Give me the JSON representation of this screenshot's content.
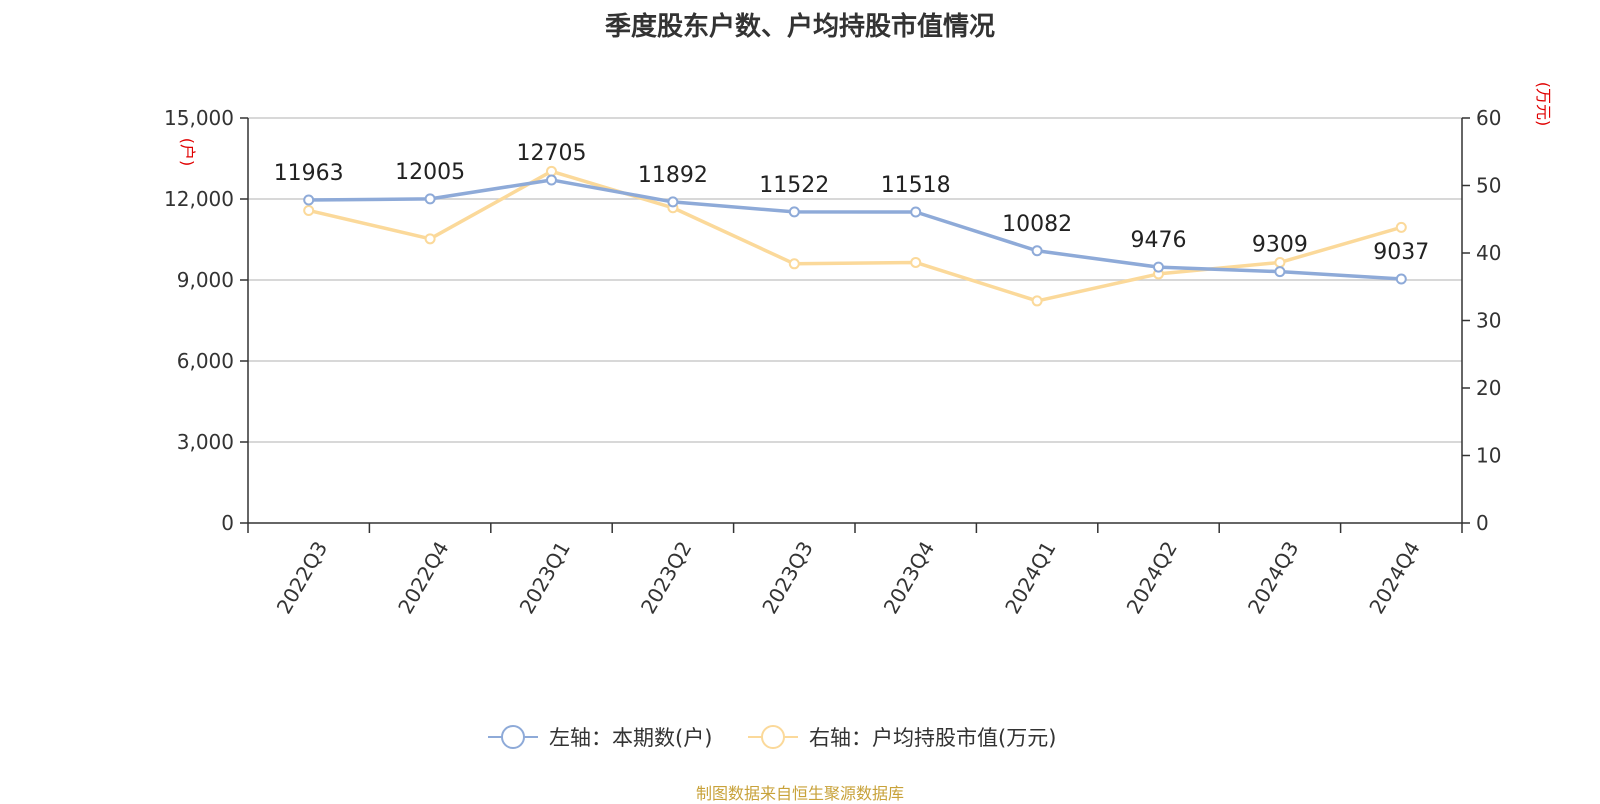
{
  "chart_data": {
    "type": "line",
    "title": "季度股东户数、户均持股市值情况",
    "categories": [
      "2022Q3",
      "2022Q4",
      "2023Q1",
      "2023Q2",
      "2023Q3",
      "2023Q4",
      "2024Q1",
      "2024Q2",
      "2024Q3",
      "2024Q4"
    ],
    "series": [
      {
        "name": "左轴：本期数(户)",
        "axis": "left",
        "color": "#8eaad8",
        "values": [
          11963,
          12005,
          12705,
          11892,
          11522,
          11518,
          10082,
          9476,
          9309,
          9037
        ],
        "labels": [
          "11963",
          "12005",
          "12705",
          "11892",
          "11522",
          "11518",
          "10082",
          "9476",
          "9309",
          "9037"
        ]
      },
      {
        "name": "右轴：户均持股市值(万元)",
        "axis": "right",
        "color": "#fbd99a",
        "values": [
          46.3,
          42.1,
          52.1,
          46.7,
          38.4,
          38.6,
          32.9,
          36.9,
          38.6,
          43.8
        ]
      }
    ],
    "left_axis": {
      "unit": "(户)",
      "ylim": [
        0,
        15000
      ],
      "ticks": [
        "0",
        "3,000",
        "6,000",
        "9,000",
        "12,000",
        "15,000"
      ]
    },
    "right_axis": {
      "unit": "(万元)",
      "ylim": [
        0,
        60
      ],
      "ticks": [
        "0",
        "10",
        "20",
        "30",
        "40",
        "50",
        "60"
      ]
    },
    "grid": true,
    "legend_position": "bottom"
  },
  "source": "制图数据来自恒生聚源数据库"
}
